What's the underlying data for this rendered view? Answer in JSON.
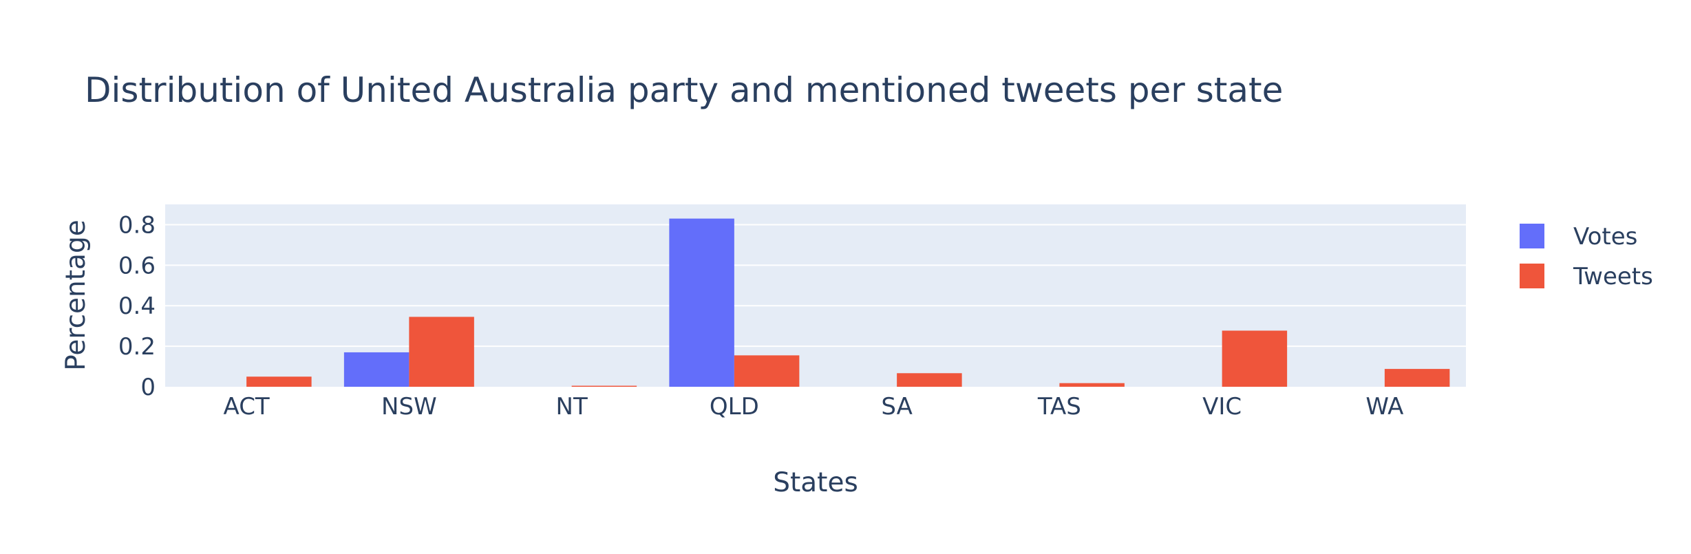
{
  "chart_data": {
    "type": "bar",
    "title": "Distribution of United Australia party and mentioned tweets per state",
    "xlabel": "States",
    "ylabel": "Percentage",
    "categories": [
      "ACT",
      "NSW",
      "NT",
      "QLD",
      "SA",
      "TAS",
      "VIC",
      "WA"
    ],
    "ylim": [
      0,
      0.9
    ],
    "yticks": [
      0,
      0.2,
      0.4,
      0.6,
      0.8
    ],
    "ytick_labels": [
      "0",
      "0.2",
      "0.4",
      "0.6",
      "0.8"
    ],
    "grid": true,
    "legend_position": "top-right",
    "series": [
      {
        "name": "Votes",
        "color": "#636efa",
        "values": [
          0,
          0.17,
          0,
          0.83,
          0,
          0,
          0,
          0
        ]
      },
      {
        "name": "Tweets",
        "color": "#ef553b",
        "values": [
          0.05,
          0.345,
          0.005,
          0.155,
          0.067,
          0.018,
          0.277,
          0.088
        ]
      }
    ],
    "plot_background": "#e5ecf6",
    "gridline_color": "#ffffff",
    "text_color": "#2a3f5f"
  }
}
